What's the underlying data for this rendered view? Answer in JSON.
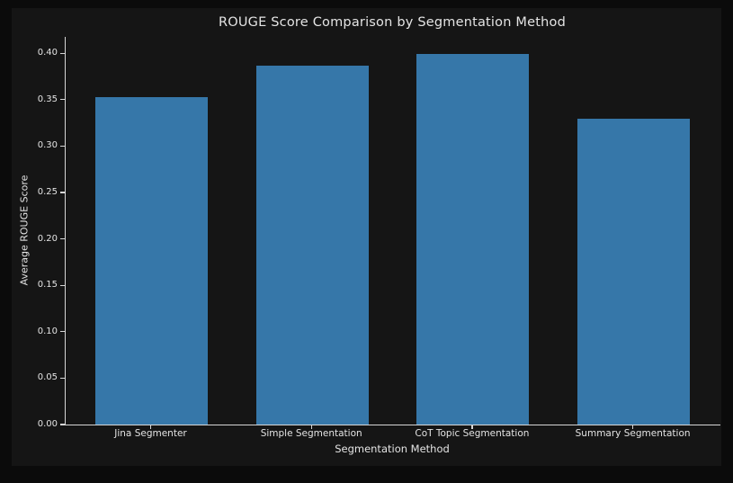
{
  "page": {
    "background": "#0b0b0b",
    "figure_background": "#151515"
  },
  "chart_data": {
    "type": "bar",
    "title": "ROUGE Score Comparison by Segmentation Method",
    "xlabel": "Segmentation Method",
    "ylabel": "Average ROUGE Score",
    "categories": [
      "Jina Segmenter",
      "Simple Segmentation",
      "CoT Topic Segmentation",
      "Summary Segmentation"
    ],
    "values": [
      0.353,
      0.387,
      0.399,
      0.329
    ],
    "yticks": [
      0.0,
      0.05,
      0.1,
      0.15,
      0.2,
      0.25,
      0.3,
      0.35,
      0.4
    ],
    "ylim": [
      0.0,
      0.418
    ],
    "grid": false,
    "legend": null,
    "bar_color": "#3677a9",
    "bar_edge_color": "#2c5f86",
    "text_color": "#e4e4e4",
    "spine_color": "#d6d6d6"
  }
}
